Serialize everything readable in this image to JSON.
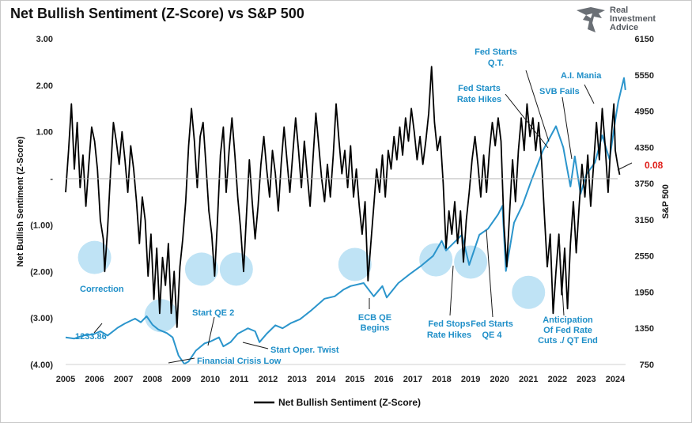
{
  "chart_data": {
    "type": "line",
    "title": "Net Bullish Sentiment (Z-Score) vs S&P 500",
    "x_ticks": [
      "2005",
      "2006",
      "2007",
      "2008",
      "2009",
      "2010",
      "2011",
      "2012",
      "2013",
      "2014",
      "2015",
      "2016",
      "2017",
      "2018",
      "2019",
      "2020",
      "2021",
      "2022",
      "2023",
      "2024"
    ],
    "xlim": [
      2005,
      2024.2
    ],
    "y_left": {
      "label": "Net Bullish Sentiment (Z-Score)",
      "range": [
        -4,
        3
      ],
      "ticks": [
        3,
        2,
        1,
        0,
        -1,
        -2,
        -3,
        -4
      ],
      "tick_labels": [
        "3.00",
        "2.00",
        "1.00",
        "-",
        "(1.00)",
        "(2.00)",
        "(3.00)",
        "(4.00)"
      ]
    },
    "y_right": {
      "label": "S&P 500",
      "range": [
        750,
        6150
      ],
      "ticks": [
        6150,
        5550,
        4950,
        4350,
        3750,
        3150,
        2550,
        1950,
        1350,
        750
      ],
      "tick_labels": [
        "6150",
        "5550",
        "4950",
        "4350",
        "3750",
        "3150",
        "2550",
        "1950",
        "1350",
        "750"
      ]
    },
    "grid": false,
    "legend": {
      "position": "bottom-center"
    },
    "series": [
      {
        "name": "Net Bullish Sentiment (Z-Score)",
        "axis": "left",
        "color": "#000000",
        "points": [
          [
            2005.0,
            -0.3
          ],
          [
            2005.1,
            0.6
          ],
          [
            2005.2,
            1.6
          ],
          [
            2005.3,
            0.2
          ],
          [
            2005.4,
            1.2
          ],
          [
            2005.5,
            -0.2
          ],
          [
            2005.6,
            0.5
          ],
          [
            2005.7,
            -0.6
          ],
          [
            2005.8,
            0.3
          ],
          [
            2005.9,
            1.1
          ],
          [
            2006.0,
            0.8
          ],
          [
            2006.1,
            0.2
          ],
          [
            2006.2,
            -0.9
          ],
          [
            2006.3,
            -1.3
          ],
          [
            2006.35,
            -2.0
          ],
          [
            2006.45,
            -1.1
          ],
          [
            2006.55,
            0.1
          ],
          [
            2006.65,
            1.2
          ],
          [
            2006.75,
            0.8
          ],
          [
            2006.85,
            0.3
          ],
          [
            2006.95,
            1.0
          ],
          [
            2007.05,
            0.4
          ],
          [
            2007.15,
            -0.3
          ],
          [
            2007.25,
            0.7
          ],
          [
            2007.35,
            0.2
          ],
          [
            2007.45,
            -0.5
          ],
          [
            2007.55,
            -1.4
          ],
          [
            2007.65,
            -0.4
          ],
          [
            2007.75,
            -0.9
          ],
          [
            2007.85,
            -2.1
          ],
          [
            2007.95,
            -1.2
          ],
          [
            2008.05,
            -2.6
          ],
          [
            2008.15,
            -1.5
          ],
          [
            2008.25,
            -2.9
          ],
          [
            2008.35,
            -1.7
          ],
          [
            2008.45,
            -2.3
          ],
          [
            2008.55,
            -1.4
          ],
          [
            2008.65,
            -2.9
          ],
          [
            2008.75,
            -2.0
          ],
          [
            2008.85,
            -3.2
          ],
          [
            2008.95,
            -1.9
          ],
          [
            2009.05,
            -1.3
          ],
          [
            2009.15,
            -0.5
          ],
          [
            2009.25,
            0.7
          ],
          [
            2009.35,
            1.5
          ],
          [
            2009.45,
            0.8
          ],
          [
            2009.55,
            -0.2
          ],
          [
            2009.65,
            0.9
          ],
          [
            2009.75,
            1.2
          ],
          [
            2009.85,
            0.3
          ],
          [
            2009.95,
            -0.7
          ],
          [
            2010.05,
            -1.2
          ],
          [
            2010.15,
            -2.1
          ],
          [
            2010.25,
            -0.9
          ],
          [
            2010.35,
            0.5
          ],
          [
            2010.45,
            1.1
          ],
          [
            2010.55,
            -0.3
          ],
          [
            2010.65,
            0.6
          ],
          [
            2010.75,
            1.3
          ],
          [
            2010.85,
            0.5
          ],
          [
            2010.95,
            -0.4
          ],
          [
            2011.05,
            -1.1
          ],
          [
            2011.15,
            -2.0
          ],
          [
            2011.25,
            -0.8
          ],
          [
            2011.35,
            0.4
          ],
          [
            2011.45,
            -0.5
          ],
          [
            2011.55,
            -1.3
          ],
          [
            2011.65,
            -0.6
          ],
          [
            2011.75,
            0.3
          ],
          [
            2011.85,
            0.9
          ],
          [
            2011.95,
            0.2
          ],
          [
            2012.05,
            -0.4
          ],
          [
            2012.15,
            0.6
          ],
          [
            2012.25,
            0.1
          ],
          [
            2012.35,
            -0.7
          ],
          [
            2012.45,
            0.3
          ],
          [
            2012.55,
            1.1
          ],
          [
            2012.65,
            0.4
          ],
          [
            2012.75,
            -0.3
          ],
          [
            2012.85,
            0.5
          ],
          [
            2012.95,
            1.3
          ],
          [
            2013.05,
            0.6
          ],
          [
            2013.15,
            -0.2
          ],
          [
            2013.25,
            0.8
          ],
          [
            2013.35,
            0.1
          ],
          [
            2013.45,
            -0.6
          ],
          [
            2013.55,
            0.4
          ],
          [
            2013.65,
            1.4
          ],
          [
            2013.75,
            0.7
          ],
          [
            2013.85,
            0.0
          ],
          [
            2013.95,
            -0.5
          ],
          [
            2014.05,
            0.3
          ],
          [
            2014.15,
            -0.4
          ],
          [
            2014.25,
            0.5
          ],
          [
            2014.35,
            1.6
          ],
          [
            2014.45,
            0.8
          ],
          [
            2014.55,
            0.1
          ],
          [
            2014.65,
            0.6
          ],
          [
            2014.75,
            -0.2
          ],
          [
            2014.85,
            0.7
          ],
          [
            2014.95,
            -0.4
          ],
          [
            2015.05,
            0.2
          ],
          [
            2015.15,
            -0.6
          ],
          [
            2015.25,
            -1.2
          ],
          [
            2015.35,
            -0.5
          ],
          [
            2015.45,
            -2.2
          ],
          [
            2015.55,
            -1.4
          ],
          [
            2015.65,
            -0.6
          ],
          [
            2015.75,
            0.2
          ],
          [
            2015.85,
            -0.3
          ],
          [
            2015.95,
            0.5
          ],
          [
            2016.05,
            -0.4
          ],
          [
            2016.15,
            0.6
          ],
          [
            2016.25,
            0.2
          ],
          [
            2016.35,
            0.9
          ],
          [
            2016.45,
            0.4
          ],
          [
            2016.55,
            1.1
          ],
          [
            2016.65,
            0.5
          ],
          [
            2016.75,
            1.3
          ],
          [
            2016.85,
            0.8
          ],
          [
            2016.95,
            1.5
          ],
          [
            2017.05,
            1.0
          ],
          [
            2017.15,
            0.4
          ],
          [
            2017.25,
            0.9
          ],
          [
            2017.35,
            0.3
          ],
          [
            2017.45,
            0.8
          ],
          [
            2017.55,
            1.4
          ],
          [
            2017.65,
            2.4
          ],
          [
            2017.75,
            1.2
          ],
          [
            2017.85,
            0.6
          ],
          [
            2017.95,
            0.9
          ],
          [
            2018.05,
            -0.1
          ],
          [
            2018.15,
            -1.5
          ],
          [
            2018.25,
            -0.7
          ],
          [
            2018.35,
            -1.2
          ],
          [
            2018.45,
            -0.5
          ],
          [
            2018.55,
            -1.4
          ],
          [
            2018.65,
            -0.7
          ],
          [
            2018.75,
            -1.8
          ],
          [
            2018.85,
            -0.9
          ],
          [
            2018.95,
            -0.3
          ],
          [
            2019.05,
            0.4
          ],
          [
            2019.15,
            0.9
          ],
          [
            2019.25,
            0.3
          ],
          [
            2019.35,
            -0.4
          ],
          [
            2019.45,
            0.5
          ],
          [
            2019.55,
            -0.3
          ],
          [
            2019.65,
            0.6
          ],
          [
            2019.75,
            1.2
          ],
          [
            2019.85,
            0.7
          ],
          [
            2019.95,
            1.3
          ],
          [
            2020.05,
            0.8
          ],
          [
            2020.15,
            -1.0
          ],
          [
            2020.25,
            -1.9
          ],
          [
            2020.35,
            -0.7
          ],
          [
            2020.45,
            0.4
          ],
          [
            2020.55,
            -0.5
          ],
          [
            2020.65,
            0.6
          ],
          [
            2020.75,
            1.3
          ],
          [
            2020.85,
            0.6
          ],
          [
            2020.95,
            1.6
          ],
          [
            2021.05,
            0.9
          ],
          [
            2021.15,
            1.3
          ],
          [
            2021.25,
            0.6
          ],
          [
            2021.35,
            1.2
          ],
          [
            2021.45,
            0.4
          ],
          [
            2021.55,
            -0.8
          ],
          [
            2021.65,
            -1.9
          ],
          [
            2021.75,
            -1.2
          ],
          [
            2021.85,
            -2.9
          ],
          [
            2021.95,
            -2.0
          ],
          [
            2022.05,
            -1.2
          ],
          [
            2022.15,
            -2.5
          ],
          [
            2022.25,
            -1.5
          ],
          [
            2022.35,
            -2.8
          ],
          [
            2022.45,
            -1.4
          ],
          [
            2022.55,
            -0.5
          ],
          [
            2022.65,
            -1.6
          ],
          [
            2022.75,
            -0.6
          ],
          [
            2022.85,
            0.3
          ],
          [
            2022.95,
            -0.4
          ],
          [
            2023.05,
            0.5
          ],
          [
            2023.15,
            -0.6
          ],
          [
            2023.25,
            0.3
          ],
          [
            2023.35,
            1.2
          ],
          [
            2023.45,
            0.4
          ],
          [
            2023.55,
            1.5
          ],
          [
            2023.65,
            0.7
          ],
          [
            2023.75,
            -0.3
          ],
          [
            2023.85,
            0.8
          ],
          [
            2023.95,
            1.6
          ],
          [
            2024.0,
            0.6
          ],
          [
            2024.08,
            0.3
          ],
          [
            2024.15,
            0.08
          ]
        ]
      },
      {
        "name": "S&P 500",
        "axis": "right",
        "color": "#2b95cc",
        "points": [
          [
            2005.0,
            1200
          ],
          [
            2005.3,
            1180
          ],
          [
            2005.6,
            1230
          ],
          [
            2005.95,
            1250
          ],
          [
            2006.2,
            1300
          ],
          [
            2006.45,
            1230
          ],
          [
            2006.8,
            1360
          ],
          [
            2007.05,
            1430
          ],
          [
            2007.4,
            1510
          ],
          [
            2007.6,
            1450
          ],
          [
            2007.8,
            1550
          ],
          [
            2008.0,
            1410
          ],
          [
            2008.2,
            1330
          ],
          [
            2008.5,
            1270
          ],
          [
            2008.7,
            1200
          ],
          [
            2008.9,
            900
          ],
          [
            2009.1,
            760
          ],
          [
            2009.25,
            800
          ],
          [
            2009.5,
            980
          ],
          [
            2009.8,
            1100
          ],
          [
            2010.0,
            1130
          ],
          [
            2010.3,
            1200
          ],
          [
            2010.45,
            1050
          ],
          [
            2010.7,
            1120
          ],
          [
            2010.95,
            1260
          ],
          [
            2011.3,
            1350
          ],
          [
            2011.55,
            1300
          ],
          [
            2011.7,
            1120
          ],
          [
            2011.95,
            1260
          ],
          [
            2012.25,
            1400
          ],
          [
            2012.5,
            1350
          ],
          [
            2012.8,
            1440
          ],
          [
            2013.1,
            1500
          ],
          [
            2013.5,
            1650
          ],
          [
            2013.95,
            1840
          ],
          [
            2014.3,
            1880
          ],
          [
            2014.6,
            1990
          ],
          [
            2014.85,
            2050
          ],
          [
            2015.3,
            2100
          ],
          [
            2015.65,
            1880
          ],
          [
            2015.95,
            2050
          ],
          [
            2016.1,
            1860
          ],
          [
            2016.5,
            2100
          ],
          [
            2016.9,
            2250
          ],
          [
            2017.3,
            2390
          ],
          [
            2017.7,
            2550
          ],
          [
            2018.0,
            2800
          ],
          [
            2018.15,
            2640
          ],
          [
            2018.7,
            2900
          ],
          [
            2018.95,
            2400
          ],
          [
            2019.3,
            2900
          ],
          [
            2019.6,
            3000
          ],
          [
            2019.95,
            3240
          ],
          [
            2020.1,
            3380
          ],
          [
            2020.22,
            2300
          ],
          [
            2020.5,
            3100
          ],
          [
            2020.8,
            3400
          ],
          [
            2021.1,
            3800
          ],
          [
            2021.5,
            4300
          ],
          [
            2021.95,
            4700
          ],
          [
            2022.2,
            4350
          ],
          [
            2022.45,
            3700
          ],
          [
            2022.6,
            4200
          ],
          [
            2022.8,
            3580
          ],
          [
            2023.0,
            3900
          ],
          [
            2023.3,
            4100
          ],
          [
            2023.55,
            4550
          ],
          [
            2023.8,
            4150
          ],
          [
            2024.0,
            4800
          ],
          [
            2024.1,
            5100
          ],
          [
            2024.2,
            5300
          ],
          [
            2024.3,
            5500
          ],
          [
            2024.35,
            5300
          ]
        ]
      }
    ],
    "annotations": [
      {
        "text": "Correction"
      },
      {
        "text": "1233.86"
      },
      {
        "text": "Start QE 2"
      },
      {
        "text": "Financial Crisis Low"
      },
      {
        "text": "Start Oper. Twist"
      },
      {
        "text": "ECB QE Begins"
      },
      {
        "text": "Fed Starts Q.T."
      },
      {
        "text": "Fed Starts Rate Hikes"
      },
      {
        "text": "SVB Fails"
      },
      {
        "text": "A.I. Mania"
      },
      {
        "text": "Fed Stops Rate Hikes"
      },
      {
        "text": "Fed Starts QE 4"
      },
      {
        "text": "Anticipation Of Fed Rate Cuts ./ QT End"
      }
    ],
    "last_value_label": "0.08"
  },
  "brand": {
    "lines": [
      "Real",
      "Investment",
      "Advice"
    ],
    "icon": "eagle-icon"
  },
  "colors": {
    "sentiment": "#000000",
    "spx": "#2b95cc",
    "annotation": "#1f8fc8",
    "bubble": "#bfe3f5",
    "last_value": "#e0201b"
  }
}
